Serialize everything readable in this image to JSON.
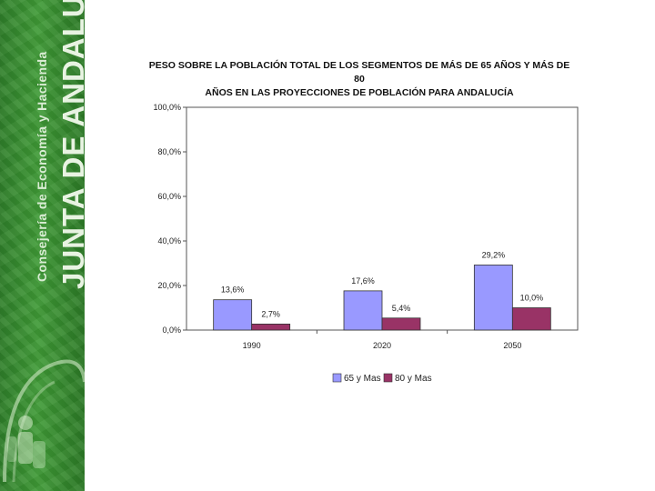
{
  "sidebar": {
    "org_small": "Consejería de Economía y Hacienda",
    "org_big": "JUNTA DE ANDALUCIA"
  },
  "chart_data": {
    "type": "bar",
    "title_line1": "PESO SOBRE LA POBLACIÓN TOTAL DE LOS SEGMENTOS DE MÁS DE 65 AÑOS Y MÁS DE 80",
    "title_line2": "AÑOS EN LAS PROYECCIONES DE POBLACIÓN PARA ANDALUCÍA",
    "categories": [
      "1990",
      "2020",
      "2050"
    ],
    "series": [
      {
        "name": "65 y Mas",
        "values": [
          13.6,
          17.6,
          29.2
        ],
        "labels": [
          "13,6%",
          "17,6%",
          "29,2%"
        ],
        "color": "#9999ff"
      },
      {
        "name": "80 y Mas",
        "values": [
          2.7,
          5.4,
          10.0
        ],
        "labels": [
          "2,7%",
          "5,4%",
          "10,0%"
        ],
        "color": "#993366"
      }
    ],
    "ylim": [
      0,
      100
    ],
    "yticks": [
      0,
      20,
      40,
      60,
      80,
      100
    ],
    "ytick_labels": [
      "0,0%",
      "20,0%",
      "40,0%",
      "60,0%",
      "80,0%",
      "100,0%"
    ],
    "legend_position": "bottom",
    "grid": false
  }
}
